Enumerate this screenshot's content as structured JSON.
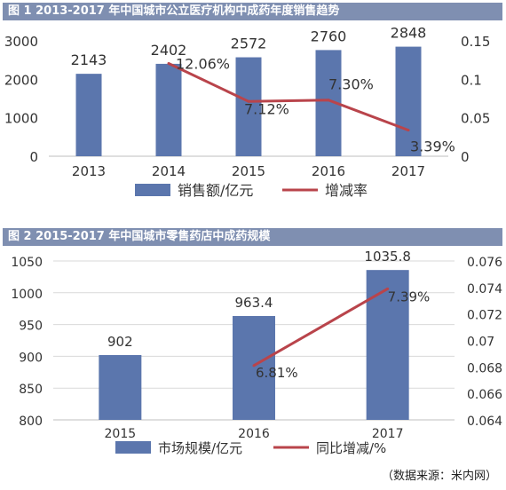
{
  "chart_data": [
    {
      "type": "bar",
      "title": "图 1   2013-2017 年中国城市公立医疗机构中成药年度销售趋势",
      "categories": [
        "2013",
        "2014",
        "2015",
        "2016",
        "2017"
      ],
      "series": [
        {
          "name": "销售额/亿元",
          "type": "bar",
          "axis": "left",
          "values": [
            2143,
            2402,
            2572,
            2760,
            2848
          ],
          "labels": [
            "2143",
            "2402",
            "2572",
            "2760",
            "2848"
          ]
        },
        {
          "name": "增减率",
          "type": "line",
          "axis": "right",
          "x": [
            "2014",
            "2015",
            "2016",
            "2017"
          ],
          "values": [
            0.1206,
            0.0712,
            0.073,
            0.0339
          ],
          "labels": [
            "12.06%",
            "7.12%",
            "7.30%",
            "3.39%"
          ]
        }
      ],
      "ylim": [
        0,
        3000
      ],
      "yticks": [
        "0",
        "1000",
        "2000",
        "3000"
      ],
      "y2lim": [
        0,
        0.15
      ],
      "y2ticks": [
        "0",
        "0.05",
        "0.1",
        "0.15"
      ],
      "grid": false,
      "legend": "bottom"
    },
    {
      "type": "bar",
      "title": "图 2   2015-2017 年中国城市零售药店中成药规模",
      "categories": [
        "2015",
        "2016",
        "2017"
      ],
      "series": [
        {
          "name": "市场规模/亿元",
          "type": "bar",
          "axis": "left",
          "values": [
            902,
            963.4,
            1035.8
          ],
          "labels": [
            "902",
            "963.4",
            "1035.8"
          ]
        },
        {
          "name": "同比增减/%",
          "type": "line",
          "axis": "right",
          "x": [
            "2016",
            "2017"
          ],
          "values": [
            0.0681,
            0.0739
          ],
          "labels": [
            "6.81%",
            "7.39%"
          ]
        }
      ],
      "ylim": [
        800,
        1050
      ],
      "yticks": [
        "800",
        "850",
        "900",
        "950",
        "1000",
        "1050"
      ],
      "y2lim": [
        0.064,
        0.076
      ],
      "y2ticks": [
        "0.064",
        "0.066",
        "0.068",
        "0.07",
        "0.072",
        "0.074",
        "0.076"
      ],
      "grid": true,
      "legend": "bottom"
    }
  ],
  "colors": {
    "bar": "#5b76ad",
    "line": "#b9444b",
    "title_bg": "#7f8fb1"
  },
  "source": "（数据来源：米内网）"
}
